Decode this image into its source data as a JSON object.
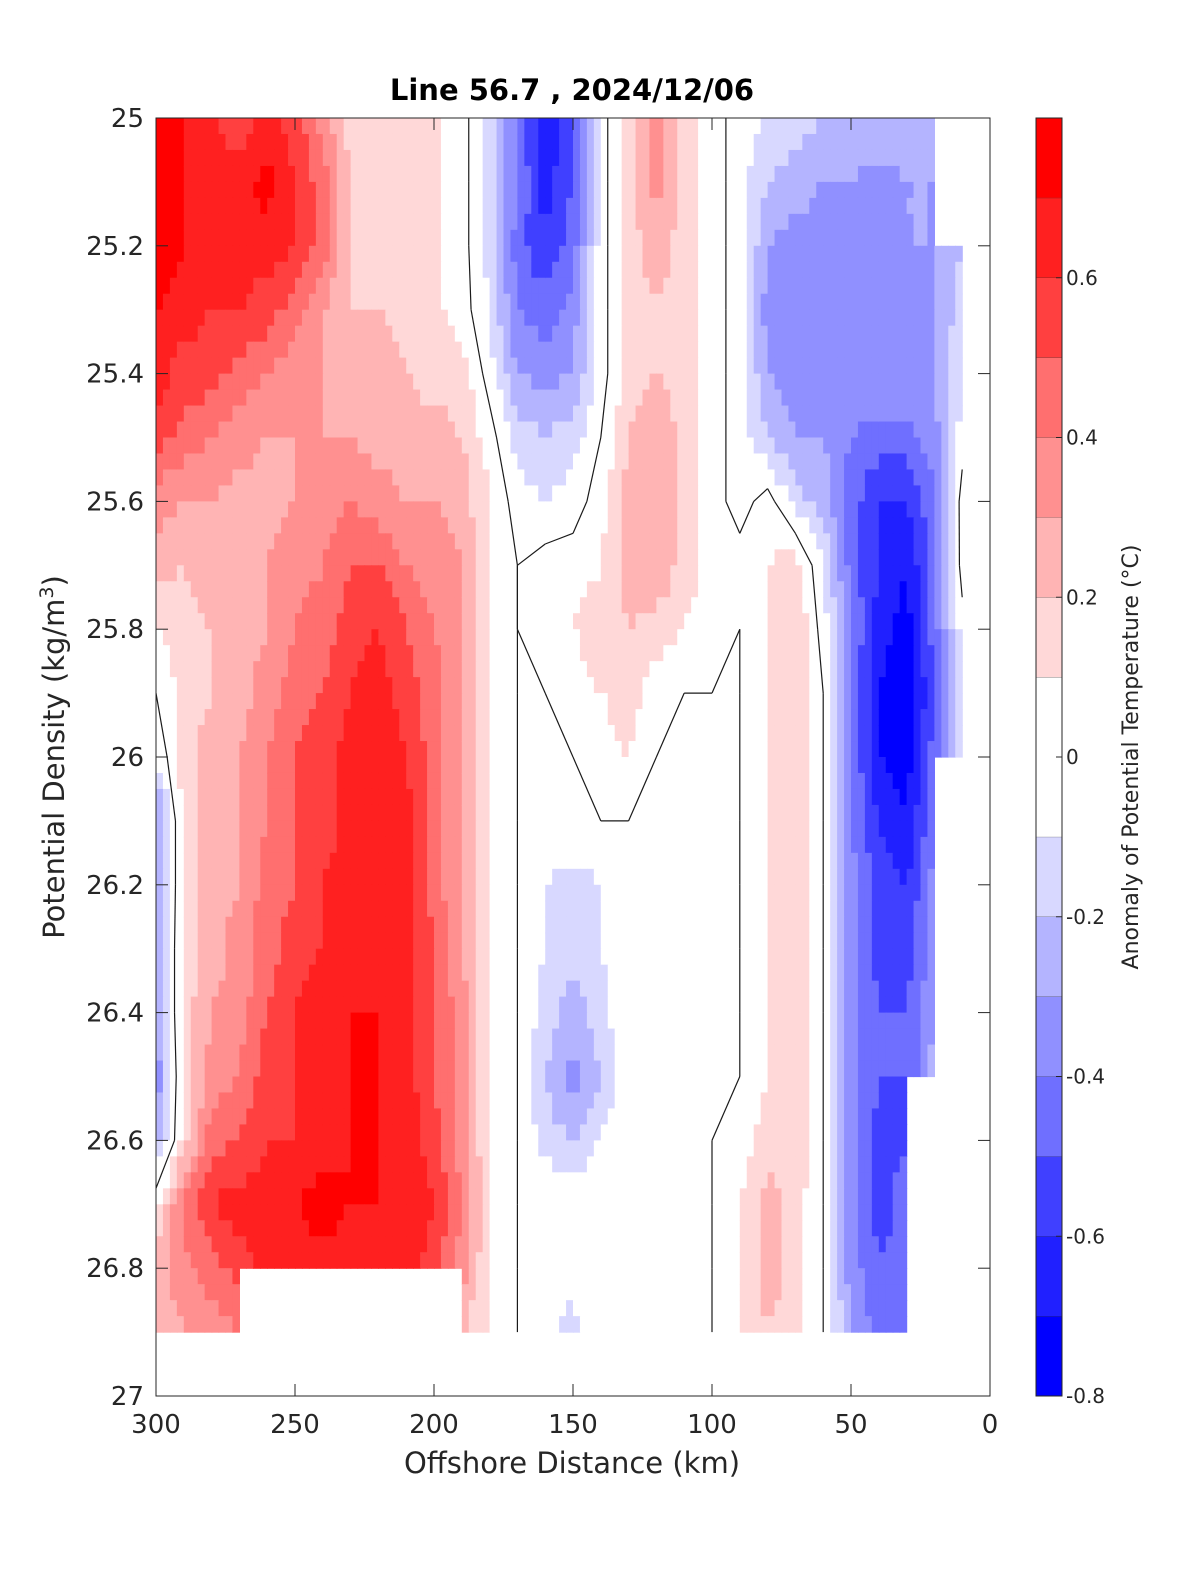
{
  "chart_data": {
    "type": "heatmap",
    "subtype": "filled-contour",
    "title": "Line 56.7 , 2024/12/06",
    "xlabel": "Offshore Distance (km)",
    "ylabel_main": "Potential Density (kg/m",
    "ylabel_sup": "3",
    "ylabel_end": ")",
    "colorbar_label": "Anomaly of Potential Temperature (°C)",
    "xlim": [
      300,
      0
    ],
    "x_reversed": true,
    "ylim": [
      25,
      27
    ],
    "y_reversed": true,
    "x_ticks": [
      300,
      250,
      200,
      150,
      100,
      50,
      0
    ],
    "x_tick_labels": [
      "300",
      "250",
      "200",
      "150",
      "100",
      "50",
      "0"
    ],
    "y_ticks": [
      25,
      25.2,
      25.4,
      25.6,
      25.8,
      26,
      26.2,
      26.4,
      26.6,
      26.8,
      27
    ],
    "y_tick_labels": [
      "25",
      "25.2",
      "25.4",
      "25.6",
      "25.8",
      "26",
      "26.2",
      "26.4",
      "26.6",
      "26.8",
      "27"
    ],
    "colorbar": {
      "range": [
        -0.8,
        0.8
      ],
      "levels": [
        -0.8,
        -0.7,
        -0.6,
        -0.5,
        -0.4,
        -0.3,
        -0.2,
        -0.1,
        0.1,
        0.2,
        0.3,
        0.4,
        0.5,
        0.6,
        0.7,
        0.8
      ],
      "ticks": [
        -0.8,
        -0.6,
        -0.4,
        -0.2,
        0,
        0.2,
        0.4,
        0.6
      ],
      "tick_labels": [
        "-0.8",
        "-0.6",
        "-0.4",
        "-0.2",
        "0",
        "0.2",
        "0.4",
        "0.6"
      ],
      "colors": [
        "#0000ff",
        "#2020ff",
        "#4040ff",
        "#6f6fff",
        "#9090ff",
        "#b4b4ff",
        "#d8d8ff",
        "#ffffff",
        "#ffd8d8",
        "#ffb4b4",
        "#ff9090",
        "#ff6f6f",
        "#ff4040",
        "#ff2020",
        "#ff0000"
      ]
    },
    "stations_km": [
      300,
      290,
      280,
      270,
      260,
      250,
      240,
      230,
      220,
      210,
      200,
      190,
      180,
      170,
      160,
      150,
      140,
      130,
      120,
      110,
      100,
      90,
      80,
      70,
      60,
      50,
      40,
      30,
      20,
      10
    ],
    "density_levels": [
      25,
      25.1,
      25.2,
      25.3,
      25.4,
      25.5,
      25.6,
      25.7,
      25.8,
      25.9,
      26,
      26.1,
      26.2,
      26.3,
      26.4,
      26.5,
      26.6,
      26.7,
      26.8,
      26.9
    ],
    "values": [
      [
        0.75,
        0.7,
        0.6,
        0.55,
        0.62,
        0.55,
        0.35,
        0.15,
        0.2,
        0.2,
        0.12,
        0.05,
        -0.15,
        -0.4,
        -0.7,
        -0.5,
        -0.05,
        0.15,
        0.35,
        0.15,
        0.05,
        -0.05,
        -0.1,
        -0.15,
        -0.2,
        -0.2,
        -0.2,
        -0.2,
        -0.2,
        null
      ],
      [
        0.75,
        0.7,
        0.65,
        0.65,
        0.75,
        0.6,
        0.45,
        0.2,
        0.2,
        0.18,
        0.12,
        0.05,
        -0.15,
        -0.4,
        -0.65,
        -0.5,
        -0.05,
        0.15,
        0.35,
        0.15,
        0.05,
        -0.05,
        -0.2,
        -0.25,
        -0.3,
        -0.3,
        -0.35,
        -0.3,
        -0.3,
        null
      ],
      [
        0.75,
        0.7,
        0.65,
        0.65,
        0.65,
        0.6,
        0.45,
        0.2,
        0.12,
        0.15,
        0.12,
        0.05,
        -0.15,
        -0.45,
        -0.6,
        -0.45,
        -0.05,
        0.15,
        0.25,
        0.15,
        0.05,
        -0.05,
        -0.3,
        -0.35,
        -0.35,
        -0.35,
        -0.4,
        -0.3,
        -0.3,
        -0.2
      ],
      [
        0.7,
        0.65,
        0.6,
        0.6,
        0.55,
        0.45,
        0.3,
        0.2,
        0.2,
        0.18,
        0.12,
        0.05,
        -0.1,
        -0.4,
        -0.45,
        -0.35,
        -0.05,
        0.15,
        0.2,
        0.15,
        0.05,
        -0.05,
        -0.35,
        -0.35,
        -0.35,
        -0.35,
        -0.35,
        -0.35,
        -0.3,
        -0.15
      ],
      [
        0.65,
        0.55,
        0.55,
        0.45,
        0.4,
        0.35,
        0.3,
        0.25,
        0.25,
        0.2,
        0.15,
        0.15,
        -0.05,
        -0.3,
        -0.35,
        -0.3,
        -0.05,
        0.15,
        0.2,
        0.15,
        0.05,
        -0.05,
        -0.3,
        -0.35,
        -0.35,
        -0.35,
        -0.3,
        -0.3,
        -0.3,
        -0.1
      ],
      [
        0.55,
        0.45,
        0.4,
        0.35,
        0.3,
        0.3,
        0.3,
        0.3,
        0.25,
        0.25,
        0.25,
        0.2,
        0.05,
        -0.15,
        -0.2,
        -0.15,
        0.0,
        0.2,
        0.3,
        0.15,
        0.05,
        -0.05,
        -0.2,
        -0.3,
        -0.3,
        -0.4,
        -0.45,
        -0.45,
        -0.35,
        -0.05
      ],
      [
        0.35,
        0.3,
        0.3,
        0.25,
        0.25,
        0.3,
        0.35,
        0.4,
        0.35,
        0.3,
        0.3,
        0.25,
        0.1,
        -0.05,
        -0.1,
        -0.05,
        0.05,
        0.25,
        0.3,
        0.15,
        0.05,
        -0.05,
        0.05,
        -0.15,
        -0.25,
        -0.45,
        -0.6,
        -0.6,
        -0.4,
        0.05
      ],
      [
        0.25,
        0.2,
        0.25,
        0.25,
        0.3,
        0.35,
        0.4,
        0.5,
        0.5,
        0.4,
        0.35,
        0.3,
        0.1,
        0.0,
        0.05,
        0.05,
        0.1,
        0.25,
        0.3,
        0.15,
        0.05,
        0.05,
        0.1,
        0.15,
        -0.1,
        -0.45,
        -0.6,
        -0.7,
        -0.45,
        0.05
      ],
      [
        0.1,
        0.15,
        0.2,
        0.25,
        0.3,
        0.4,
        0.45,
        0.55,
        0.6,
        0.5,
        0.4,
        0.3,
        0.1,
        0.0,
        0.05,
        0.1,
        0.15,
        0.2,
        0.15,
        0.1,
        0.05,
        0.0,
        0.1,
        0.2,
        -0.05,
        -0.4,
        -0.65,
        -0.75,
        -0.45,
        -0.05
      ],
      [
        0.0,
        0.15,
        0.2,
        0.25,
        0.35,
        0.45,
        0.5,
        0.6,
        0.65,
        0.55,
        0.45,
        0.3,
        0.1,
        0.0,
        0.0,
        0.05,
        0.1,
        0.15,
        0.05,
        0.0,
        0.0,
        0.0,
        0.1,
        0.2,
        0.0,
        -0.4,
        -0.7,
        -0.8,
        -0.5,
        -0.1
      ],
      [
        -0.1,
        0.15,
        0.25,
        0.3,
        0.4,
        0.5,
        0.55,
        0.65,
        0.7,
        0.6,
        0.45,
        0.3,
        0.1,
        0.0,
        0.0,
        0.0,
        0.05,
        0.1,
        0.0,
        0.0,
        0.0,
        0.0,
        0.1,
        0.2,
        0.0,
        -0.4,
        -0.7,
        -0.75,
        -0.45,
        -0.1
      ],
      [
        -0.35,
        0.15,
        0.25,
        0.3,
        0.4,
        0.5,
        0.55,
        0.65,
        0.7,
        0.65,
        0.45,
        0.3,
        0.1,
        0.0,
        0.0,
        0.0,
        0.0,
        0.0,
        0.0,
        0.0,
        0.0,
        0.0,
        0.1,
        0.2,
        0.0,
        -0.4,
        -0.6,
        -0.7,
        -0.4,
        null
      ],
      [
        -0.35,
        0.15,
        0.25,
        0.3,
        0.45,
        0.5,
        0.6,
        0.65,
        0.7,
        0.65,
        0.45,
        0.3,
        0.1,
        0.0,
        -0.1,
        -0.15,
        -0.1,
        0.0,
        0.0,
        0.0,
        0.0,
        0.0,
        0.1,
        0.2,
        0.0,
        -0.35,
        -0.55,
        -0.6,
        -0.35,
        null
      ],
      [
        -0.3,
        0.15,
        0.25,
        0.35,
        0.45,
        0.55,
        0.6,
        0.65,
        0.7,
        0.65,
        0.5,
        0.3,
        0.1,
        0.0,
        -0.1,
        -0.15,
        -0.1,
        0.0,
        0.0,
        0.0,
        0.0,
        0.0,
        0.1,
        0.2,
        0.0,
        -0.35,
        -0.55,
        -0.55,
        -0.35,
        null
      ],
      [
        -0.3,
        0.15,
        0.3,
        0.35,
        0.5,
        0.6,
        0.65,
        0.7,
        0.7,
        0.65,
        0.5,
        0.35,
        0.1,
        0.0,
        -0.15,
        -0.25,
        -0.15,
        0.0,
        0.0,
        0.0,
        0.0,
        0.0,
        0.1,
        0.2,
        0.0,
        -0.35,
        -0.5,
        -0.5,
        -0.3,
        null
      ],
      [
        -0.4,
        0.15,
        0.35,
        0.4,
        0.55,
        0.6,
        0.65,
        0.7,
        0.7,
        0.65,
        0.5,
        0.35,
        0.1,
        0.0,
        -0.2,
        -0.35,
        -0.2,
        0.0,
        0.0,
        -0.05,
        0.0,
        0.0,
        0.1,
        0.2,
        0.0,
        -0.35,
        -0.5,
        -0.5,
        -0.25,
        null
      ],
      [
        -0.3,
        0.15,
        0.45,
        0.5,
        0.6,
        0.6,
        0.65,
        0.7,
        0.7,
        0.65,
        0.55,
        0.35,
        0.1,
        0.0,
        -0.15,
        -0.2,
        -0.1,
        0.0,
        0.0,
        -0.1,
        0.0,
        0.05,
        0.15,
        0.2,
        0.0,
        -0.35,
        -0.55,
        -0.5,
        null,
        null
      ],
      [
        0.1,
        0.45,
        0.6,
        0.65,
        0.65,
        0.7,
        0.75,
        0.7,
        0.7,
        0.7,
        0.6,
        0.4,
        0.1,
        0.0,
        0.0,
        -0.05,
        0.0,
        0.0,
        0.0,
        0.0,
        0.0,
        0.1,
        0.25,
        0.15,
        0.0,
        -0.35,
        -0.55,
        -0.45,
        null,
        null
      ],
      [
        0.25,
        0.35,
        0.45,
        0.55,
        0.65,
        0.65,
        0.65,
        0.65,
        0.65,
        0.65,
        0.55,
        0.35,
        0.1,
        0.0,
        0.0,
        -0.05,
        0.0,
        0.0,
        0.0,
        0.0,
        0.0,
        0.1,
        0.25,
        0.15,
        0.0,
        -0.35,
        -0.5,
        -0.45,
        null,
        null
      ],
      [
        0.25,
        0.3,
        0.35,
        0.4,
        null,
        null,
        null,
        null,
        null,
        null,
        null,
        0.2,
        0.1,
        0.0,
        -0.05,
        -0.15,
        0.0,
        0.0,
        0.0,
        0.0,
        0.0,
        0.1,
        0.2,
        0.15,
        0.0,
        -0.3,
        -0.45,
        -0.45,
        null,
        null
      ]
    ]
  }
}
